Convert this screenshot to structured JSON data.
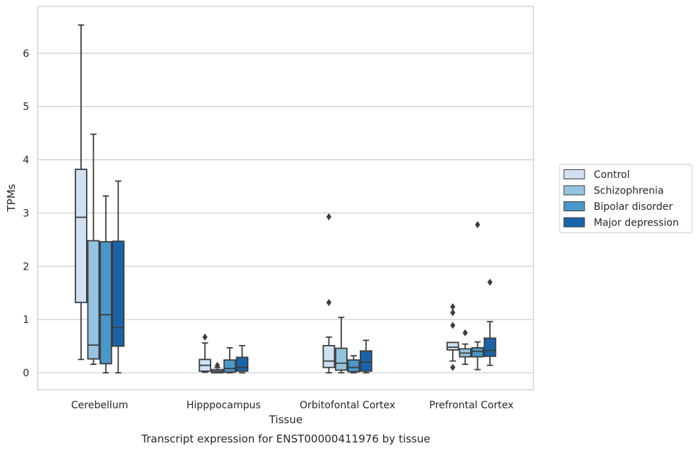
{
  "chart_data": {
    "type": "box",
    "caption": "Transcript expression for ENST00000411976 by tissue",
    "xlabel": "Tissue",
    "ylabel": "TPMs",
    "ylim": [
      -0.32,
      6.88
    ],
    "yticks": [
      0,
      1,
      2,
      3,
      4,
      5,
      6
    ],
    "grid": true,
    "legend_position": "right",
    "categories": [
      "Cerebellum",
      "Hipppocampus",
      "Orbitofontal Cortex",
      "Prefrontal Cortex"
    ],
    "series": [
      {
        "name": "Control",
        "color": "#d0e1f2",
        "boxes": [
          {
            "whisker_low": 0.25,
            "q1": 1.32,
            "median": 2.92,
            "q3": 3.82,
            "whisker_high": 6.53,
            "outliers": []
          },
          {
            "whisker_low": 0.01,
            "q1": 0.03,
            "median": 0.14,
            "q3": 0.25,
            "whisker_high": 0.56,
            "outliers": [
              0.67
            ]
          },
          {
            "whisker_low": 0.0,
            "q1": 0.1,
            "median": 0.22,
            "q3": 0.51,
            "whisker_high": 0.67,
            "outliers": [
              1.32,
              2.93
            ]
          },
          {
            "whisker_low": 0.22,
            "q1": 0.43,
            "median": 0.48,
            "q3": 0.57,
            "whisker_high": 0.57,
            "outliers": [
              0.1,
              0.89,
              1.13,
              1.24
            ]
          }
        ]
      },
      {
        "name": "Schizophrenia",
        "color": "#94c4df",
        "boxes": [
          {
            "whisker_low": 0.16,
            "q1": 0.26,
            "median": 0.52,
            "q3": 2.48,
            "whisker_high": 4.48,
            "outliers": []
          },
          {
            "whisker_low": 0.0,
            "q1": 0.0,
            "median": 0.03,
            "q3": 0.06,
            "whisker_high": 0.1,
            "outliers": [
              0.14
            ]
          },
          {
            "whisker_low": 0.0,
            "q1": 0.05,
            "median": 0.18,
            "q3": 0.46,
            "whisker_high": 1.04,
            "outliers": []
          },
          {
            "whisker_low": 0.16,
            "q1": 0.3,
            "median": 0.37,
            "q3": 0.45,
            "whisker_high": 0.54,
            "outliers": [
              0.75
            ]
          }
        ]
      },
      {
        "name": "Bipolar disorder",
        "color": "#4a98c9",
        "boxes": [
          {
            "whisker_low": 0.0,
            "q1": 0.17,
            "median": 1.09,
            "q3": 2.46,
            "whisker_high": 3.32,
            "outliers": []
          },
          {
            "whisker_low": 0.0,
            "q1": 0.01,
            "median": 0.08,
            "q3": 0.24,
            "whisker_high": 0.47,
            "outliers": []
          },
          {
            "whisker_low": 0.0,
            "q1": 0.02,
            "median": 0.1,
            "q3": 0.24,
            "whisker_high": 0.32,
            "outliers": []
          },
          {
            "whisker_low": 0.06,
            "q1": 0.3,
            "median": 0.4,
            "q3": 0.47,
            "whisker_high": 0.58,
            "outliers": [
              2.78
            ]
          }
        ]
      },
      {
        "name": "Major depression",
        "color": "#1764ab",
        "boxes": [
          {
            "whisker_low": 0.0,
            "q1": 0.5,
            "median": 0.85,
            "q3": 2.47,
            "whisker_high": 3.6,
            "outliers": []
          },
          {
            "whisker_low": 0.0,
            "q1": 0.03,
            "median": 0.1,
            "q3": 0.29,
            "whisker_high": 0.51,
            "outliers": []
          },
          {
            "whisker_low": 0.0,
            "q1": 0.03,
            "median": 0.2,
            "q3": 0.41,
            "whisker_high": 0.61,
            "outliers": []
          },
          {
            "whisker_low": 0.14,
            "q1": 0.31,
            "median": 0.42,
            "q3": 0.65,
            "whisker_high": 0.96,
            "outliers": [
              1.7
            ]
          }
        ]
      }
    ]
  }
}
